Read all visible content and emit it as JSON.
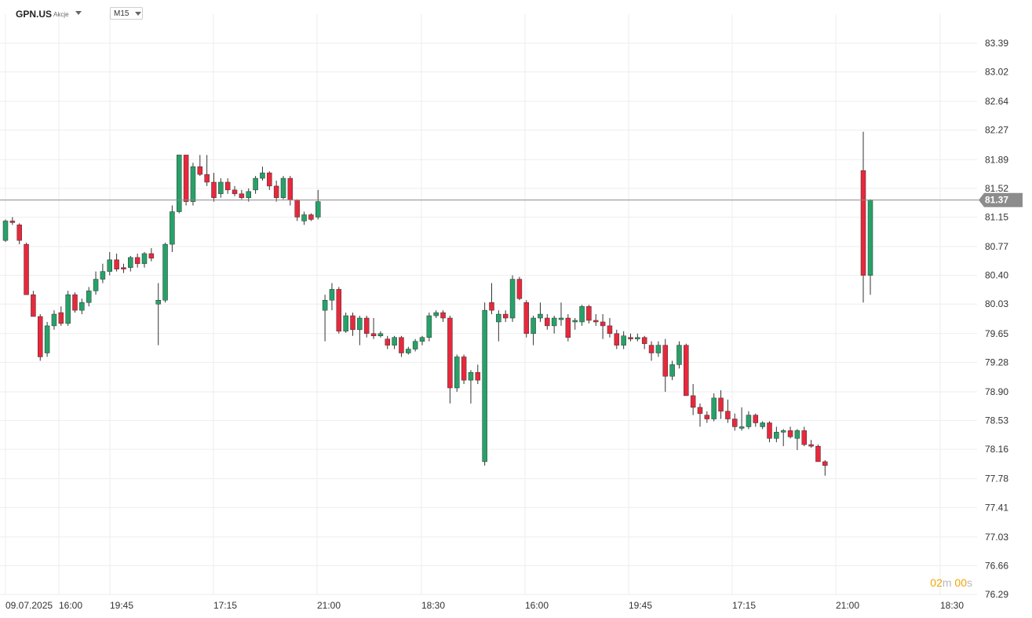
{
  "header": {
    "symbol": "GPN.US",
    "asset_type": "Akcje",
    "timeframe": "M15"
  },
  "timer": {
    "minutes": "02",
    "minutes_unit": "m",
    "seconds": "00",
    "seconds_unit": "s"
  },
  "colors": {
    "up": "#26a269",
    "down": "#e8283c",
    "grid": "#eeeeee",
    "price_line": "#888888",
    "price_tag": "#8c8c8c"
  },
  "chart_data": {
    "type": "candlestick",
    "symbol": "GPN.US",
    "timeframe": "M15",
    "current_price": "81.37",
    "y_ticks": [
      "83.39",
      "83.02",
      "82.64",
      "82.27",
      "81.89",
      "81.52",
      "81.15",
      "80.77",
      "80.40",
      "80.03",
      "79.65",
      "79.28",
      "78.90",
      "78.53",
      "78.16",
      "77.78",
      "77.41",
      "77.03",
      "76.66",
      "76.29"
    ],
    "ylim": [
      76.29,
      83.39
    ],
    "x_ticks": [
      "09.07.2025",
      "16:00",
      "19:45",
      "17:15",
      "21:00",
      "18:30",
      "16:00",
      "19:45",
      "17:15",
      "21:00",
      "18:30"
    ],
    "grid": true,
    "candles": [
      [
        80.85,
        81.1,
        80.83,
        81.12
      ],
      [
        81.1,
        81.08,
        81.05,
        81.15
      ],
      [
        81.05,
        80.85,
        80.8,
        81.07
      ],
      [
        80.8,
        80.15,
        80.15,
        80.82
      ],
      [
        80.15,
        79.87,
        79.87,
        80.2
      ],
      [
        79.87,
        79.35,
        79.3,
        79.9
      ],
      [
        79.4,
        79.75,
        79.35,
        79.8
      ],
      [
        79.75,
        79.9,
        79.7,
        79.95
      ],
      [
        79.92,
        79.78,
        79.75,
        80.0
      ],
      [
        79.78,
        80.15,
        79.75,
        80.2
      ],
      [
        80.15,
        79.95,
        79.92,
        80.18
      ],
      [
        79.95,
        80.05,
        79.9,
        80.1
      ],
      [
        80.05,
        80.2,
        80.0,
        80.25
      ],
      [
        80.2,
        80.35,
        80.15,
        80.45
      ],
      [
        80.35,
        80.45,
        80.3,
        80.55
      ],
      [
        80.45,
        80.6,
        80.4,
        80.7
      ],
      [
        80.6,
        80.48,
        80.45,
        80.68
      ],
      [
        80.5,
        80.48,
        80.43,
        80.55
      ],
      [
        80.5,
        80.63,
        80.45,
        80.65
      ],
      [
        80.63,
        80.55,
        80.5,
        80.68
      ],
      [
        80.55,
        80.68,
        80.5,
        80.7
      ],
      [
        80.68,
        80.62,
        80.58,
        80.75
      ],
      [
        80.03,
        80.08,
        79.5,
        80.3
      ],
      [
        80.08,
        80.8,
        80.05,
        80.82
      ],
      [
        80.8,
        81.22,
        80.7,
        81.3
      ],
      [
        81.22,
        81.95,
        81.2,
        81.95
      ],
      [
        81.95,
        81.35,
        81.3,
        81.95
      ],
      [
        81.35,
        81.8,
        81.3,
        81.85
      ],
      [
        81.8,
        81.7,
        81.68,
        81.95
      ],
      [
        81.7,
        81.6,
        81.55,
        81.95
      ],
      [
        81.6,
        81.4,
        81.35,
        81.72
      ],
      [
        81.45,
        81.6,
        81.4,
        81.65
      ],
      [
        81.6,
        81.5,
        81.45,
        81.65
      ],
      [
        81.5,
        81.45,
        81.42,
        81.55
      ],
      [
        81.45,
        81.4,
        81.38,
        81.5
      ],
      [
        81.4,
        81.48,
        81.35,
        81.52
      ],
      [
        81.5,
        81.65,
        81.45,
        81.68
      ],
      [
        81.65,
        81.72,
        81.62,
        81.8
      ],
      [
        81.72,
        81.55,
        81.5,
        81.74
      ],
      [
        81.55,
        81.4,
        81.35,
        81.62
      ],
      [
        81.4,
        81.65,
        81.38,
        81.68
      ],
      [
        81.65,
        81.37,
        81.3,
        81.68
      ],
      [
        81.37,
        81.15,
        81.1,
        81.38
      ],
      [
        81.1,
        81.18,
        81.05,
        81.22
      ],
      [
        81.18,
        81.12,
        81.1,
        81.2
      ],
      [
        81.15,
        81.35,
        81.12,
        81.5
      ],
      [
        79.95,
        80.08,
        79.55,
        80.15
      ],
      [
        80.08,
        80.22,
        79.95,
        80.3
      ],
      [
        80.22,
        79.68,
        79.65,
        80.25
      ],
      [
        79.68,
        79.88,
        79.66,
        79.92
      ],
      [
        79.88,
        79.7,
        79.62,
        79.92
      ],
      [
        79.7,
        79.85,
        79.5,
        79.88
      ],
      [
        79.85,
        79.65,
        79.6,
        79.88
      ],
      [
        79.65,
        79.62,
        79.58,
        79.85
      ],
      [
        79.62,
        79.65,
        79.6,
        79.68
      ],
      [
        79.58,
        79.5,
        79.45,
        79.62
      ],
      [
        79.5,
        79.6,
        79.45,
        79.62
      ],
      [
        79.6,
        79.4,
        79.35,
        79.62
      ],
      [
        79.4,
        79.45,
        79.38,
        79.48
      ],
      [
        79.45,
        79.55,
        79.42,
        79.58
      ],
      [
        79.55,
        79.6,
        79.5,
        79.62
      ],
      [
        79.6,
        79.88,
        79.55,
        79.92
      ],
      [
        79.88,
        79.92,
        79.85,
        79.95
      ],
      [
        79.92,
        79.85,
        79.8,
        79.95
      ],
      [
        79.85,
        78.95,
        78.75,
        79.88
      ],
      [
        78.95,
        79.35,
        78.9,
        79.38
      ],
      [
        79.35,
        79.05,
        79.0,
        79.38
      ],
      [
        79.05,
        79.15,
        78.75,
        79.18
      ],
      [
        79.15,
        79.05,
        79.0,
        79.25
      ],
      [
        78.0,
        79.95,
        77.95,
        80.05
      ],
      [
        80.05,
        79.95,
        79.9,
        80.3
      ],
      [
        79.8,
        79.9,
        79.55,
        79.95
      ],
      [
        79.9,
        79.85,
        79.8,
        79.95
      ],
      [
        79.85,
        80.35,
        79.8,
        80.4
      ],
      [
        80.35,
        80.1,
        80.08,
        80.38
      ],
      [
        80.05,
        79.65,
        79.6,
        80.08
      ],
      [
        79.65,
        79.85,
        79.5,
        79.88
      ],
      [
        79.85,
        79.9,
        79.8,
        80.05
      ],
      [
        79.85,
        79.75,
        79.7,
        79.9
      ],
      [
        79.75,
        79.85,
        79.65,
        79.88
      ],
      [
        79.85,
        79.85,
        79.75,
        80.05
      ],
      [
        79.85,
        79.6,
        79.55,
        79.9
      ],
      [
        79.8,
        79.82,
        79.7,
        79.85
      ],
      [
        79.8,
        80.0,
        79.75,
        80.02
      ],
      [
        80.0,
        79.82,
        79.78,
        80.02
      ],
      [
        79.82,
        79.8,
        79.75,
        79.9
      ],
      [
        79.8,
        79.75,
        79.58,
        79.9
      ],
      [
        79.75,
        79.65,
        79.6,
        79.85
      ],
      [
        79.65,
        79.5,
        79.45,
        79.7
      ],
      [
        79.5,
        79.62,
        79.45,
        79.68
      ],
      [
        79.6,
        79.58,
        79.55,
        79.65
      ],
      [
        79.58,
        79.6,
        79.55,
        79.65
      ],
      [
        79.6,
        79.52,
        79.45,
        79.62
      ],
      [
        79.5,
        79.4,
        79.3,
        79.55
      ],
      [
        79.4,
        79.5,
        79.35,
        79.55
      ],
      [
        79.5,
        79.1,
        78.9,
        79.58
      ],
      [
        79.1,
        79.25,
        79.05,
        79.3
      ],
      [
        79.25,
        79.5,
        79.2,
        79.55
      ],
      [
        79.5,
        78.85,
        78.85,
        79.52
      ],
      [
        78.85,
        78.7,
        78.6,
        79.0
      ],
      [
        78.7,
        78.62,
        78.45,
        78.75
      ],
      [
        78.6,
        78.55,
        78.5,
        78.65
      ],
      [
        78.55,
        78.82,
        78.52,
        78.88
      ],
      [
        78.82,
        78.65,
        78.55,
        78.92
      ],
      [
        78.65,
        78.55,
        78.5,
        78.8
      ],
      [
        78.55,
        78.45,
        78.4,
        78.62
      ],
      [
        78.45,
        78.45,
        78.4,
        78.7
      ],
      [
        78.45,
        78.6,
        78.42,
        78.65
      ],
      [
        78.6,
        78.5,
        78.45,
        78.62
      ],
      [
        78.45,
        78.5,
        78.42,
        78.52
      ],
      [
        78.5,
        78.3,
        78.25,
        78.52
      ],
      [
        78.3,
        78.38,
        78.25,
        78.45
      ],
      [
        78.38,
        78.4,
        78.2,
        78.42
      ],
      [
        78.4,
        78.32,
        78.3,
        78.45
      ],
      [
        78.3,
        78.4,
        78.15,
        78.42
      ],
      [
        78.4,
        78.22,
        78.2,
        78.45
      ],
      [
        78.22,
        78.2,
        78.18,
        78.28
      ],
      [
        78.2,
        78.0,
        78.0,
        78.22
      ],
      [
        78.0,
        77.95,
        77.82,
        78.02
      ],
      [
        81.75,
        80.4,
        80.05,
        82.25
      ],
      [
        80.4,
        81.37,
        80.15,
        81.38
      ]
    ]
  }
}
